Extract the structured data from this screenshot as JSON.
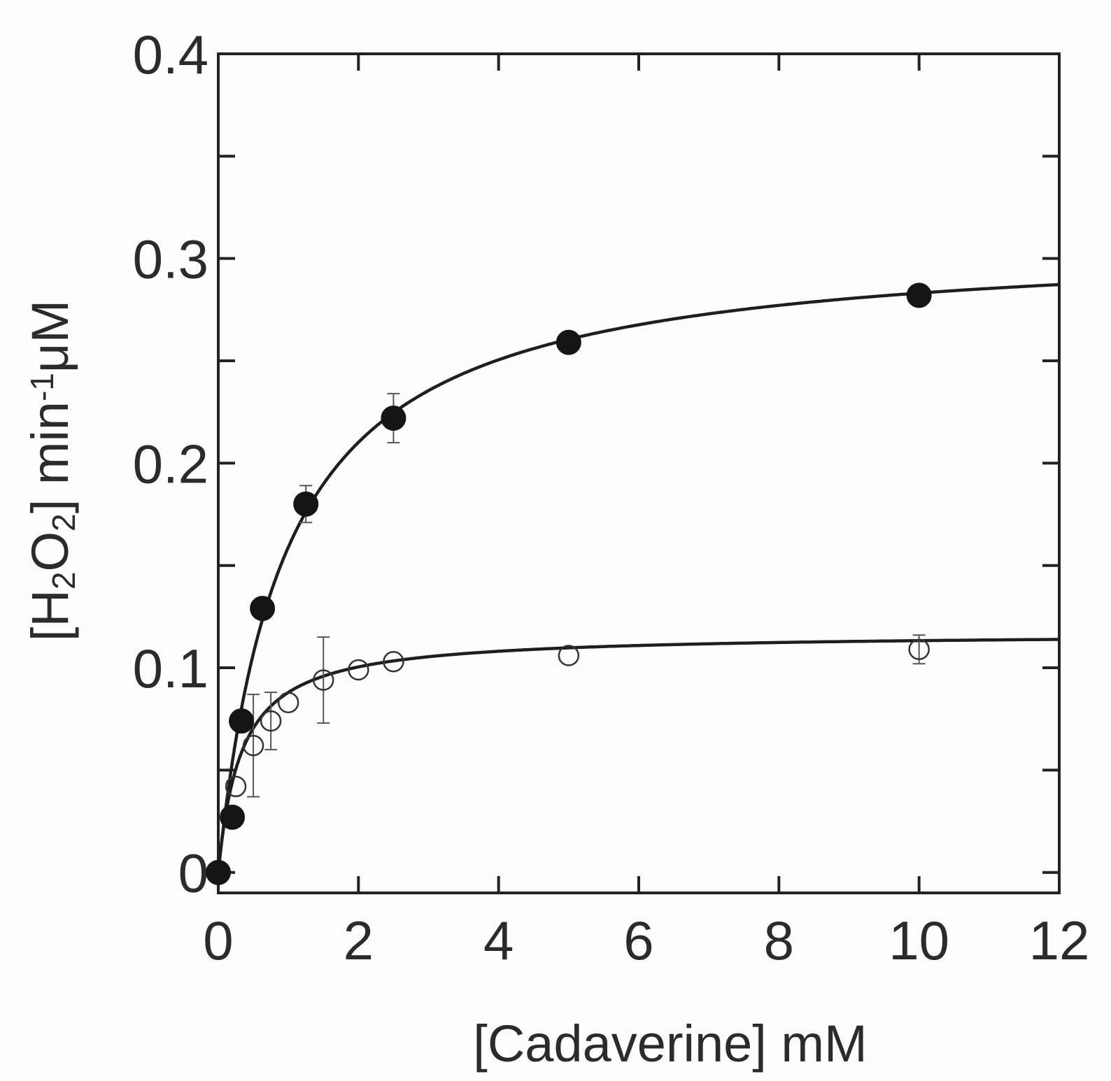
{
  "chart_data": {
    "type": "scatter",
    "xlabel": "[Cadaverine] mM",
    "ylabel": {
      "parts": [
        "[H",
        "2",
        "O",
        "2",
        "] min",
        "-1",
        "μM"
      ],
      "styles": [
        "normal",
        "sub",
        "normal",
        "sub",
        "normal",
        "sup",
        "normal"
      ]
    },
    "xlim": [
      0,
      12
    ],
    "ylim": [
      -0.01,
      0.4
    ],
    "xticks": [
      0,
      2,
      4,
      6,
      8,
      10,
      12
    ],
    "xtick_labels": [
      "0",
      "2",
      "4",
      "6",
      "8",
      "10",
      "12"
    ],
    "yticks": [
      0,
      0.1,
      0.2,
      0.3,
      0.4
    ],
    "ytick_labels": [
      "0",
      "0.1",
      "0.2",
      "0.3",
      "0.4"
    ],
    "yminor": [
      0.05,
      0.15,
      0.25,
      0.35
    ],
    "grid": false,
    "series": [
      {
        "marker": "filled-circle",
        "x": [
          0,
          0.2,
          0.33,
          0.63,
          1.25,
          2.5,
          5,
          10
        ],
        "y": [
          0.0,
          0.027,
          0.074,
          0.129,
          0.18,
          0.222,
          0.259,
          0.282
        ],
        "yerr": [
          0,
          0,
          0,
          0,
          0.009,
          0.012,
          0,
          0
        ],
        "fit": {
          "model": "michaelis-menten",
          "vmax": 0.31,
          "km": 0.95
        }
      },
      {
        "marker": "open-circle",
        "x": [
          0.25,
          0.5,
          0.75,
          1.0,
          1.5,
          2.0,
          2.5,
          5,
          10
        ],
        "y": [
          0.042,
          0.062,
          0.074,
          0.083,
          0.094,
          0.099,
          0.103,
          0.106,
          0.109
        ],
        "yerr": [
          0,
          0.025,
          0.014,
          0,
          0.021,
          0,
          0,
          0,
          0.007
        ],
        "fit": {
          "model": "michaelis-menten",
          "vmax": 0.117,
          "km": 0.33
        }
      }
    ]
  }
}
